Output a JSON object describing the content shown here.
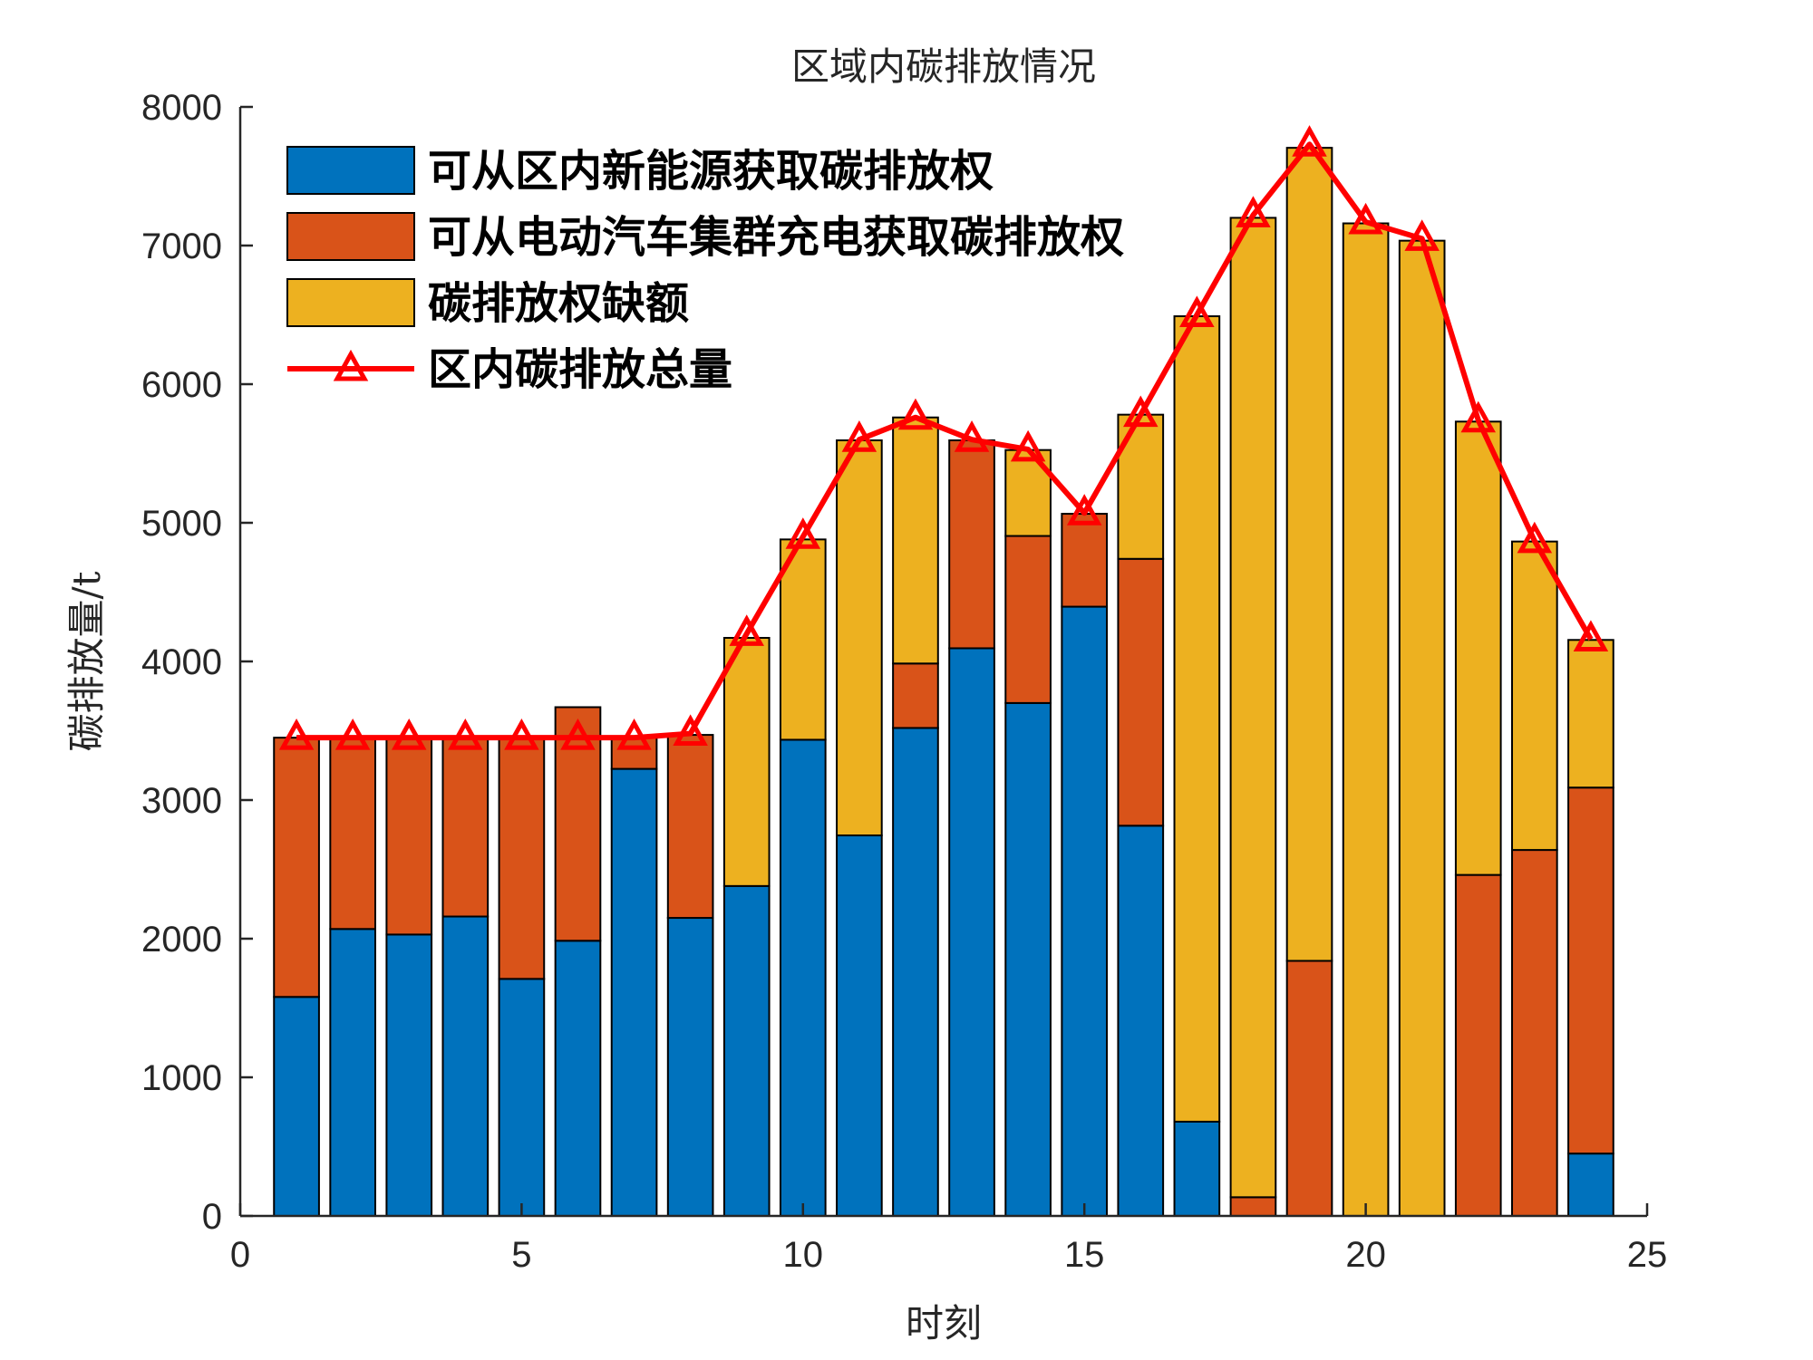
{
  "chart_data": {
    "type": "bar",
    "stacked": true,
    "title": "区域内碳排放情况",
    "xlabel": "时刻",
    "ylabel": "碳排放量/t",
    "xlim": [
      0,
      25
    ],
    "ylim": [
      0,
      8000
    ],
    "xticks": [
      "0",
      "5",
      "10",
      "15",
      "20",
      "25"
    ],
    "yticks": [
      "0",
      "1000",
      "2000",
      "3000",
      "4000",
      "5000",
      "6000",
      "7000",
      "8000"
    ],
    "legend_position": "top-left",
    "x": [
      1,
      2,
      3,
      4,
      5,
      6,
      7,
      8,
      9,
      10,
      11,
      12,
      13,
      14,
      15,
      16,
      17,
      18,
      19,
      20,
      21,
      22,
      23,
      24
    ],
    "series": [
      {
        "name": "可从区内新能源获取碳排放权",
        "type": "bar",
        "color": "#0072BD",
        "values": [
          1580,
          2070,
          2030,
          2160,
          1710,
          1985,
          3225,
          2150,
          2380,
          3435,
          2745,
          3520,
          4095,
          3700,
          4395,
          2815,
          680,
          0,
          0,
          0,
          0,
          0,
          0,
          450
        ]
      },
      {
        "name": "可从电动汽车集群充电获取碳排放权",
        "type": "bar",
        "color": "#D95319",
        "values": [
          1870,
          1380,
          1420,
          1290,
          1740,
          1685,
          225,
          1320,
          0,
          0,
          0,
          465,
          1500,
          1205,
          670,
          1925,
          0,
          135,
          1840,
          0,
          0,
          2460,
          2640,
          2640
        ]
      },
      {
        "name": "碳排放权缺额",
        "type": "bar",
        "color": "#EDB120",
        "values": [
          0,
          0,
          0,
          0,
          0,
          0,
          0,
          0,
          1790,
          1445,
          2850,
          1775,
          0,
          620,
          0,
          1040,
          5810,
          7065,
          5865,
          7160,
          7035,
          3270,
          2225,
          1065
        ]
      },
      {
        "name": "区内碳排放总量",
        "type": "line",
        "color": "#FF0000",
        "marker": "triangle",
        "values": [
          3450,
          3450,
          3450,
          3450,
          3450,
          3450,
          3450,
          3480,
          4200,
          4900,
          5600,
          5760,
          5600,
          5530,
          5070,
          5780,
          6500,
          7220,
          7730,
          7170,
          7050,
          5740,
          4870,
          4160
        ]
      }
    ]
  }
}
